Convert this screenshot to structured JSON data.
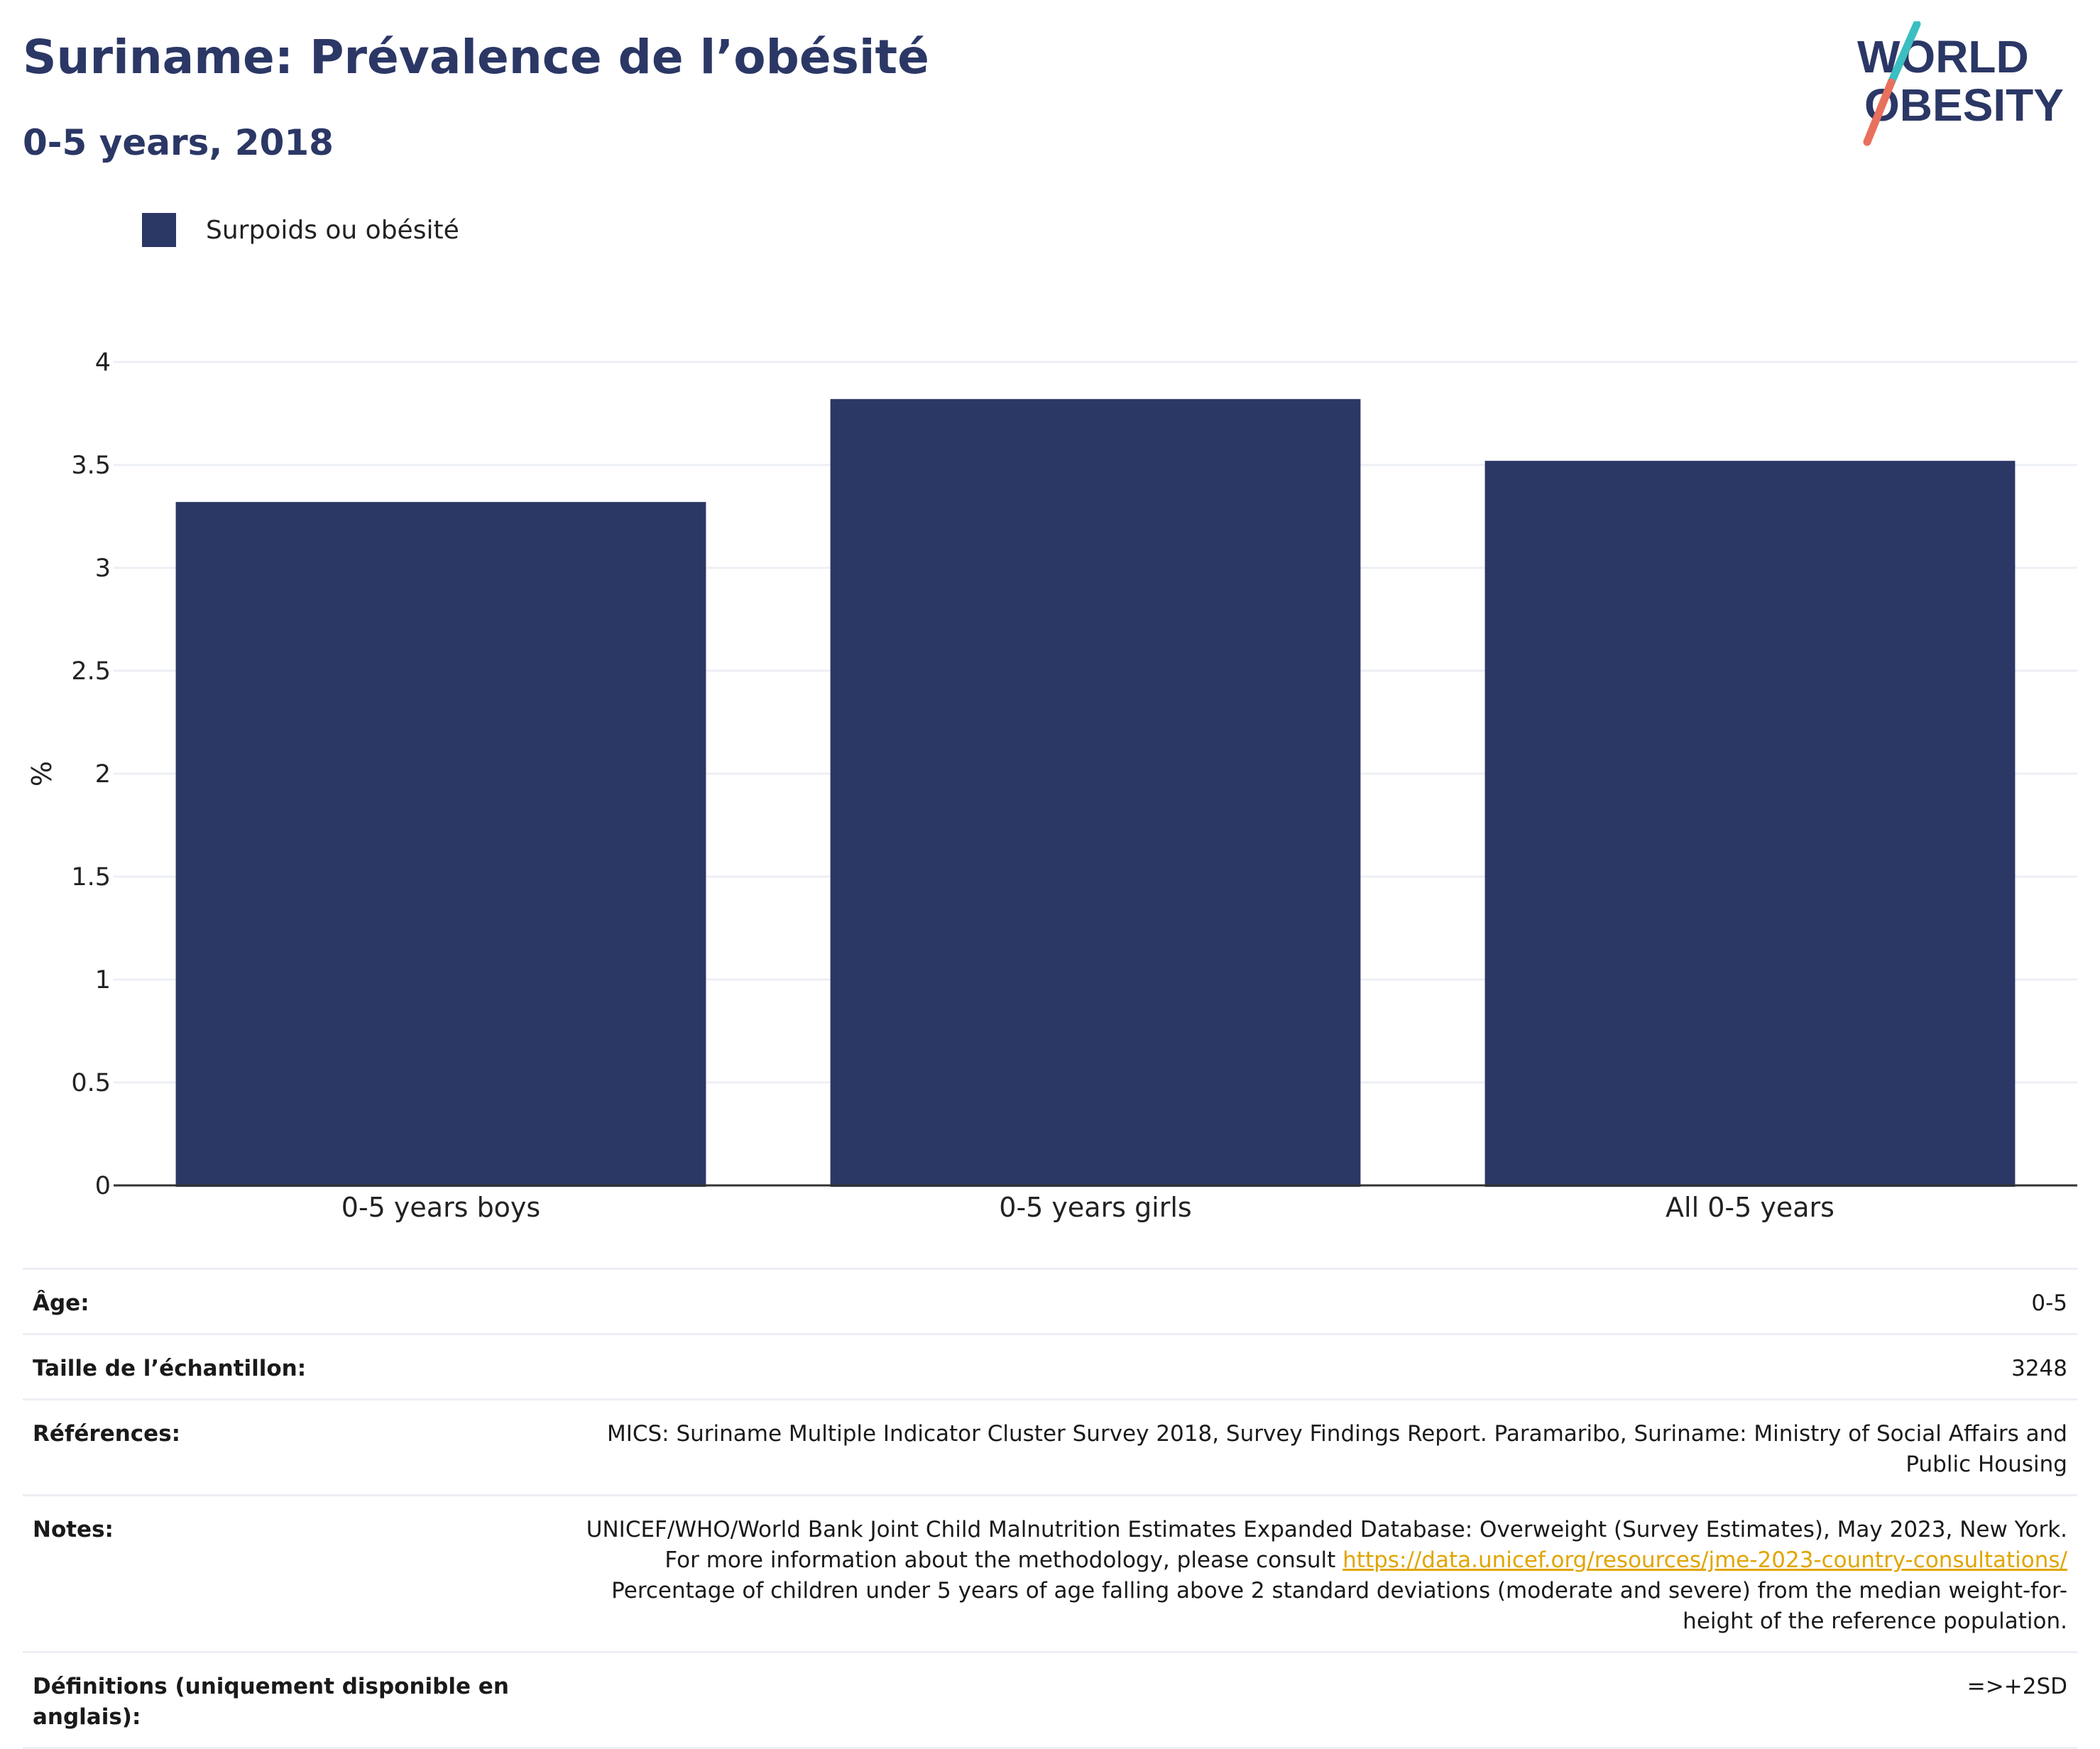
{
  "header": {
    "title": "Suriname: Prévalence de l’obésité",
    "subtitle": "0-5 years, 2018"
  },
  "logo": {
    "line1": "WORLD",
    "line2": "OBESITY",
    "colors": {
      "navy": "#2b3765",
      "teal": "#3bbfc1",
      "coral": "#e8705d"
    }
  },
  "colors": {
    "bar": "#2b3765",
    "grid": "#eceff4",
    "axis": "#333333",
    "link": "#e0a500"
  },
  "chart_data": {
    "type": "bar",
    "title": "Suriname: Prévalence de l’obésité",
    "subtitle": "0-5 years, 2018",
    "categories": [
      "0-5 years boys",
      "0-5 years girls",
      "All 0-5 years"
    ],
    "series": [
      {
        "name": "Surpoids ou obésité",
        "values": [
          3.32,
          3.82,
          3.52
        ],
        "color": "#2b3765"
      }
    ],
    "ylabel": "%",
    "xlabel": "",
    "ylim": [
      0,
      4
    ],
    "yticks": [
      0,
      0.5,
      1,
      1.5,
      2,
      2.5,
      3,
      3.5,
      4
    ],
    "ytick_labels": [
      "0",
      "0.5",
      "1",
      "1.5",
      "2",
      "2.5",
      "3",
      "3.5",
      "4"
    ],
    "grid": true,
    "legend_position": "top-left"
  },
  "info": {
    "age": {
      "label": "Âge:",
      "value": "0-5"
    },
    "sample": {
      "label": "Taille de l’échantillon:",
      "value": "3248"
    },
    "references": {
      "label": "Références:",
      "value": "MICS: Suriname Multiple Indicator Cluster Survey 2018, Survey Findings Report. Paramaribo, Suriname: Ministry of Social Affairs and Public Housing"
    },
    "notes": {
      "label": "Notes:",
      "text1": "UNICEF/WHO/World Bank Joint Child Malnutrition Estimates Expanded Database: Overweight (Survey Estimates), May 2023, New York. For more information about the methodology, please consult ",
      "link": "https://data.unicef.org/resources/jme-2023-country-consultations/",
      "text2": " Percentage of children under 5 years of age falling above 2 standard deviations (moderate and severe) from the median weight-for-height of the reference population."
    },
    "definitions": {
      "label": "Définitions (uniquement disponible en anglais):",
      "value": "=>+2SD"
    }
  }
}
